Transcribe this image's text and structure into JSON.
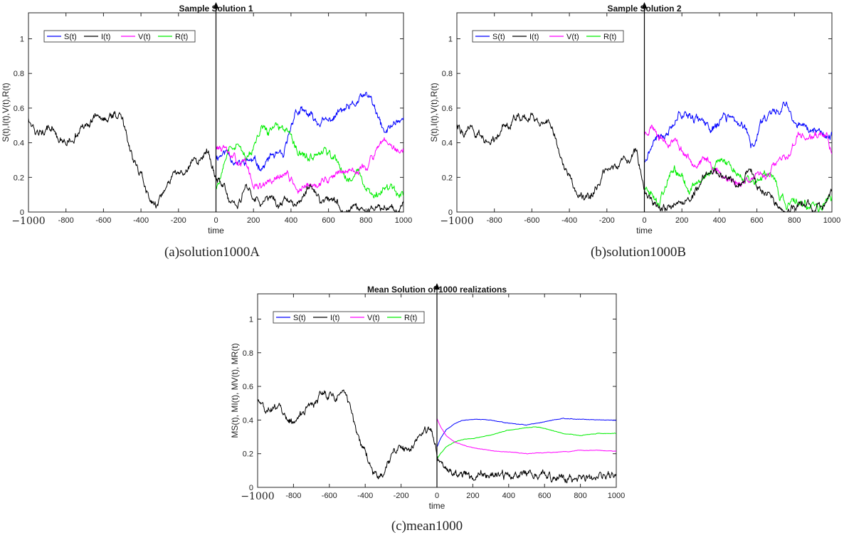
{
  "chart_data": [
    {
      "type": "line",
      "title": "Sample Solution 1",
      "caption": "(a)solution1000A",
      "xlabel": "time",
      "ylabel": "S(t),I(t),V(t),R(t)",
      "xlim": [
        -1000,
        1000
      ],
      "ylim": [
        0,
        1.15
      ],
      "xticks": [
        -1000,
        -800,
        -600,
        -400,
        -200,
        0,
        200,
        400,
        600,
        800,
        1000
      ],
      "xtick_labels": [
        "−1000",
        "-800",
        "-600",
        "-400",
        "-200",
        "0",
        "200",
        "400",
        "600",
        "800",
        "1000"
      ],
      "yticks": [
        0,
        0.2,
        0.4,
        0.6,
        0.8,
        1
      ],
      "ytick_labels": [
        "0",
        "0.2",
        "0.4",
        "0.6",
        "0.8",
        "1"
      ],
      "legend_position": "top-left",
      "vertical_arrow_at": 0,
      "series": [
        {
          "name": "S(t)",
          "color": "#0000ff",
          "noise": 0.022,
          "seed": 11,
          "x": [
            0,
            60,
            120,
            180,
            250,
            300,
            360,
            420,
            480,
            540,
            600,
            660,
            720,
            780,
            820,
            860,
            900,
            960,
            1000
          ],
          "y": [
            0.32,
            0.35,
            0.27,
            0.3,
            0.26,
            0.33,
            0.31,
            0.58,
            0.57,
            0.52,
            0.52,
            0.58,
            0.6,
            0.66,
            0.67,
            0.55,
            0.45,
            0.53,
            0.54
          ]
        },
        {
          "name": "I(t)",
          "color": "#000000",
          "noise": 0.022,
          "seed": 12,
          "x": [
            -1000,
            -960,
            -920,
            -880,
            -840,
            -800,
            -760,
            -720,
            -680,
            -640,
            -600,
            -560,
            -520,
            -480,
            -440,
            -400,
            -360,
            -320,
            -280,
            -240,
            -200,
            -160,
            -120,
            -80,
            -40,
            -20,
            0,
            40,
            80,
            120,
            160,
            200,
            240,
            300,
            340,
            380,
            420,
            460,
            500,
            560,
            620,
            680,
            740,
            800,
            860,
            920,
            980,
            1000
          ],
          "y": [
            0.55,
            0.45,
            0.46,
            0.49,
            0.42,
            0.39,
            0.43,
            0.48,
            0.5,
            0.55,
            0.53,
            0.54,
            0.57,
            0.47,
            0.28,
            0.21,
            0.1,
            0.05,
            0.11,
            0.2,
            0.25,
            0.21,
            0.3,
            0.3,
            0.35,
            0.28,
            0.2,
            0.14,
            0.04,
            0.05,
            0.12,
            0.1,
            0.06,
            0.08,
            0.03,
            0.1,
            0.03,
            0.08,
            0.16,
            0.05,
            0.07,
            0.02,
            0.03,
            0.02,
            0.02,
            0.03,
            0.02,
            0.05
          ]
        },
        {
          "name": "V(t)",
          "color": "#ff00ff",
          "noise": 0.02,
          "seed": 13,
          "x": [
            0,
            50,
            100,
            160,
            200,
            260,
            320,
            380,
            440,
            500,
            560,
            620,
            680,
            740,
            800,
            860,
            900,
            940,
            1000
          ],
          "y": [
            0.38,
            0.35,
            0.3,
            0.28,
            0.15,
            0.15,
            0.19,
            0.22,
            0.12,
            0.14,
            0.18,
            0.2,
            0.24,
            0.24,
            0.26,
            0.36,
            0.4,
            0.36,
            0.35
          ]
        },
        {
          "name": "R(t)",
          "color": "#00ee00",
          "noise": 0.022,
          "seed": 14,
          "x": [
            0,
            40,
            80,
            120,
            160,
            200,
            240,
            280,
            330,
            380,
            420,
            460,
            500,
            540,
            580,
            640,
            700,
            760,
            800,
            840,
            880,
            940,
            1000
          ],
          "y": [
            0.14,
            0.25,
            0.4,
            0.4,
            0.3,
            0.35,
            0.5,
            0.45,
            0.5,
            0.46,
            0.38,
            0.35,
            0.3,
            0.32,
            0.36,
            0.3,
            0.2,
            0.22,
            0.12,
            0.1,
            0.14,
            0.12,
            0.08
          ]
        }
      ]
    },
    {
      "type": "line",
      "title": "Sample Solution 2",
      "caption": "(b)solution1000B",
      "xlabel": "time",
      "ylabel": "S(t),I(t),V(t),R(t)",
      "xlim": [
        -1000,
        1000
      ],
      "ylim": [
        0,
        1.15
      ],
      "xticks": [
        -1000,
        -800,
        -600,
        -400,
        -200,
        0,
        200,
        400,
        600,
        800,
        1000
      ],
      "xtick_labels": [
        "−1000",
        "-800",
        "-600",
        "-400",
        "-200",
        "0",
        "200",
        "400",
        "600",
        "800",
        "1000"
      ],
      "yticks": [
        0,
        0.2,
        0.4,
        0.6,
        0.8,
        1
      ],
      "ytick_labels": [
        "0",
        "0.2",
        "0.4",
        "0.6",
        "0.8",
        "1"
      ],
      "legend_position": "top-left",
      "vertical_arrow_at": 0,
      "series": [
        {
          "name": "S(t)",
          "color": "#0000ff",
          "noise": 0.022,
          "seed": 21,
          "x": [
            0,
            60,
            120,
            180,
            240,
            300,
            360,
            420,
            480,
            540,
            580,
            620,
            680,
            720,
            760,
            820,
            880,
            940,
            1000
          ],
          "y": [
            0.3,
            0.42,
            0.45,
            0.57,
            0.57,
            0.52,
            0.48,
            0.55,
            0.52,
            0.48,
            0.36,
            0.52,
            0.58,
            0.6,
            0.62,
            0.5,
            0.47,
            0.46,
            0.44
          ]
        },
        {
          "name": "I(t)",
          "color": "#000000",
          "noise": 0.022,
          "seed": 22,
          "x": [
            -1000,
            -960,
            -920,
            -880,
            -840,
            -800,
            -760,
            -720,
            -680,
            -640,
            -600,
            -560,
            -520,
            -480,
            -440,
            -400,
            -360,
            -320,
            -280,
            -240,
            -200,
            -160,
            -120,
            -80,
            -40,
            -20,
            0,
            40,
            80,
            140,
            200,
            260,
            320,
            380,
            440,
            500,
            560,
            620,
            680,
            720,
            780,
            840,
            900,
            960,
            1000
          ],
          "y": [
            0.5,
            0.45,
            0.5,
            0.43,
            0.4,
            0.42,
            0.5,
            0.52,
            0.55,
            0.53,
            0.55,
            0.53,
            0.55,
            0.45,
            0.28,
            0.2,
            0.12,
            0.05,
            0.1,
            0.18,
            0.22,
            0.25,
            0.3,
            0.32,
            0.35,
            0.25,
            0.15,
            0.06,
            0.02,
            0.02,
            0.05,
            0.1,
            0.2,
            0.25,
            0.2,
            0.15,
            0.25,
            0.12,
            0.06,
            0.02,
            0.02,
            0.06,
            0.03,
            0.03,
            0.14
          ]
        },
        {
          "name": "V(t)",
          "color": "#ff00ff",
          "noise": 0.02,
          "seed": 23,
          "x": [
            0,
            40,
            80,
            120,
            160,
            220,
            280,
            340,
            400,
            440,
            500,
            560,
            620,
            660,
            720,
            760,
            820,
            880,
            940,
            980,
            1000
          ],
          "y": [
            0.45,
            0.5,
            0.45,
            0.4,
            0.42,
            0.33,
            0.28,
            0.3,
            0.22,
            0.2,
            0.16,
            0.2,
            0.2,
            0.22,
            0.3,
            0.3,
            0.45,
            0.42,
            0.45,
            0.42,
            0.32
          ]
        },
        {
          "name": "R(t)",
          "color": "#00ee00",
          "noise": 0.022,
          "seed": 24,
          "x": [
            0,
            40,
            80,
            120,
            160,
            200,
            240,
            300,
            360,
            420,
            480,
            540,
            600,
            660,
            700,
            720,
            760,
            820,
            880,
            940,
            1000
          ],
          "y": [
            0.15,
            0.1,
            0.05,
            0.18,
            0.25,
            0.2,
            0.12,
            0.18,
            0.25,
            0.3,
            0.26,
            0.2,
            0.18,
            0.2,
            0.2,
            0.1,
            0.03,
            0.06,
            0.04,
            0.03,
            0.08
          ]
        }
      ]
    },
    {
      "type": "line",
      "title": "Mean Solution of 1000 realizations",
      "caption": "(c)mean1000",
      "xlabel": "time",
      "ylabel": "MS(t), MI(t), MV(t), MR(t)",
      "xlim": [
        -1000,
        1000
      ],
      "ylim": [
        0,
        1.15
      ],
      "xticks": [
        -1000,
        -800,
        -600,
        -400,
        -200,
        0,
        200,
        400,
        600,
        800,
        1000
      ],
      "xtick_labels": [
        "−1000",
        "-800",
        "-600",
        "-400",
        "-200",
        "0",
        "200",
        "400",
        "600",
        "800",
        "1000"
      ],
      "yticks": [
        0,
        0.2,
        0.4,
        0.6,
        0.8,
        1
      ],
      "ytick_labels": [
        "0",
        "0.2",
        "0.4",
        "0.6",
        "0.8",
        "1"
      ],
      "legend_position": "top-left",
      "vertical_arrow_at": 0,
      "series": [
        {
          "name": "S(t)",
          "color": "#0000ff",
          "noise": 0.0015,
          "seed": 31,
          "x": [
            0,
            20,
            50,
            100,
            150,
            200,
            300,
            400,
            500,
            600,
            700,
            800,
            900,
            1000
          ],
          "y": [
            0.24,
            0.29,
            0.34,
            0.38,
            0.4,
            0.405,
            0.4,
            0.38,
            0.37,
            0.39,
            0.41,
            0.405,
            0.4,
            0.4
          ]
        },
        {
          "name": "I(t)",
          "color": "#000000",
          "noise": 0.022,
          "seed": 32,
          "x": [
            -1000,
            -960,
            -920,
            -880,
            -840,
            -800,
            -760,
            -720,
            -680,
            -640,
            -600,
            -560,
            -520,
            -480,
            -440,
            -400,
            -360,
            -320,
            -280,
            -240,
            -200,
            -160,
            -120,
            -80,
            -40,
            -20,
            0,
            30,
            60,
            100,
            150,
            200,
            300,
            400,
            500,
            600,
            700,
            800,
            900,
            1000
          ],
          "y": [
            0.52,
            0.46,
            0.45,
            0.48,
            0.42,
            0.38,
            0.42,
            0.48,
            0.5,
            0.55,
            0.54,
            0.53,
            0.58,
            0.46,
            0.3,
            0.2,
            0.1,
            0.05,
            0.12,
            0.2,
            0.25,
            0.2,
            0.3,
            0.32,
            0.36,
            0.3,
            0.18,
            0.13,
            0.1,
            0.08,
            0.07,
            0.065,
            0.07,
            0.07,
            0.075,
            0.065,
            0.05,
            0.05,
            0.06,
            0.055
          ]
        },
        {
          "name": "V(t)",
          "color": "#ff00ff",
          "noise": 0.0015,
          "seed": 33,
          "x": [
            0,
            20,
            50,
            100,
            150,
            200,
            300,
            400,
            500,
            600,
            700,
            800,
            900,
            1000
          ],
          "y": [
            0.41,
            0.36,
            0.31,
            0.27,
            0.25,
            0.235,
            0.22,
            0.21,
            0.2,
            0.205,
            0.21,
            0.22,
            0.22,
            0.215
          ]
        },
        {
          "name": "R(t)",
          "color": "#00ee00",
          "noise": 0.0015,
          "seed": 34,
          "x": [
            0,
            20,
            50,
            100,
            150,
            200,
            300,
            400,
            500,
            550,
            600,
            700,
            800,
            900,
            1000
          ],
          "y": [
            0.17,
            0.2,
            0.24,
            0.27,
            0.285,
            0.29,
            0.31,
            0.34,
            0.355,
            0.36,
            0.35,
            0.32,
            0.31,
            0.32,
            0.32
          ]
        }
      ]
    }
  ]
}
